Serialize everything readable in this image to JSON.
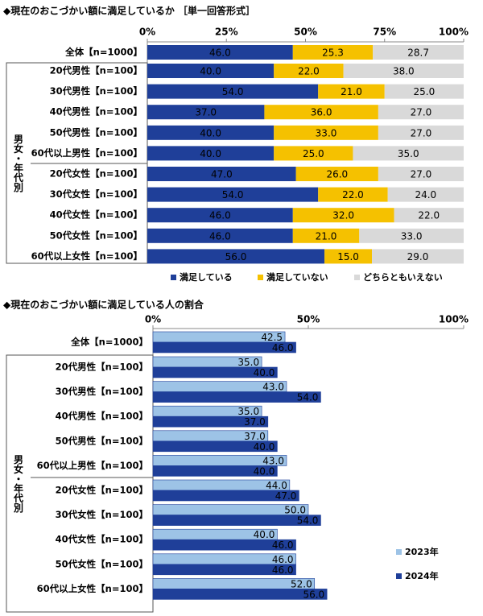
{
  "chart_data": [
    {
      "type": "bar",
      "orientation": "horizontal",
      "stacked": true,
      "title": "◆現在のおこづかい額に満足しているか ［単一回答形式］",
      "group_label": "男女・年代別",
      "categories": [
        "全体【n=1000】",
        "20代男性【n=100】",
        "30代男性【n=100】",
        "40代男性【n=100】",
        "50代男性【n=100】",
        "60代以上男性【n=100】",
        "20代女性【n=100】",
        "30代女性【n=100】",
        "40代女性【n=100】",
        "50代女性【n=100】",
        "60代以上女性【n=100】"
      ],
      "series": [
        {
          "name": "満足している",
          "color": "#1f3f99",
          "values": [
            46,
            40,
            54,
            37,
            40,
            40,
            47,
            54,
            46,
            46,
            56
          ],
          "value_labels": [
            "46.0",
            "40.0",
            "54.0",
            "37.0",
            "40.0",
            "40.0",
            "47.0",
            "54.0",
            "46.0",
            "46.0",
            "56.0"
          ]
        },
        {
          "name": "満足していない",
          "color": "#f5c100",
          "values": [
            25.3,
            22,
            21,
            36,
            33,
            25,
            26,
            22,
            32,
            21,
            15
          ],
          "value_labels": [
            "25.3",
            "22.0",
            "21.0",
            "36.0",
            "33.0",
            "25.0",
            "26.0",
            "22.0",
            "32.0",
            "21.0",
            "15.0"
          ]
        },
        {
          "name": "どちらともいえない",
          "color": "#d9d9d9",
          "values": [
            28.7,
            38,
            25,
            27,
            27,
            35,
            27,
            24,
            22,
            33,
            29
          ],
          "value_labels": [
            "28.7",
            "38.0",
            "25.0",
            "27.0",
            "27.0",
            "35.0",
            "27.0",
            "24.0",
            "22.0",
            "33.0",
            "29.0"
          ]
        }
      ],
      "xlim": [
        0,
        100
      ],
      "xticks": [
        {
          "value": 0,
          "label": "0%"
        },
        {
          "value": 25,
          "label": "25%"
        },
        {
          "value": 50,
          "label": "50%"
        },
        {
          "value": 75,
          "label": "75%"
        },
        {
          "value": 100,
          "label": "100%"
        }
      ],
      "legend": "bottom"
    },
    {
      "type": "bar",
      "orientation": "horizontal",
      "stacked": false,
      "title": "◆現在のおこづかい額に満足している人の割合",
      "group_label": "男女・年代別",
      "categories": [
        "全体【n=1000】",
        "20代男性【n=100】",
        "30代男性【n=100】",
        "40代男性【n=100】",
        "50代男性【n=100】",
        "60代以上男性【n=100】",
        "20代女性【n=100】",
        "30代女性【n=100】",
        "40代女性【n=100】",
        "50代女性【n=100】",
        "60代以上女性【n=100】"
      ],
      "series": [
        {
          "name": "2023年",
          "color": "#9dc3e6",
          "values": [
            42.5,
            35,
            43,
            35,
            37,
            43,
            44,
            50,
            40,
            46,
            52
          ],
          "value_labels": [
            "42.5",
            "35.0",
            "43.0",
            "35.0",
            "37.0",
            "43.0",
            "44.0",
            "50.0",
            "40.0",
            "46.0",
            "52.0"
          ]
        },
        {
          "name": "2024年",
          "color": "#1f3f99",
          "values": [
            46,
            40,
            54,
            37,
            40,
            40,
            47,
            54,
            46,
            46,
            56
          ],
          "value_labels": [
            "46.0",
            "40.0",
            "54.0",
            "37.0",
            "40.0",
            "40.0",
            "47.0",
            "54.0",
            "46.0",
            "46.0",
            "56.0"
          ]
        }
      ],
      "xlim": [
        0,
        100
      ],
      "xticks": [
        {
          "value": 0,
          "label": "0%"
        },
        {
          "value": 50,
          "label": "50%"
        },
        {
          "value": 100,
          "label": "100%"
        }
      ],
      "legend": "bottom-right"
    }
  ]
}
